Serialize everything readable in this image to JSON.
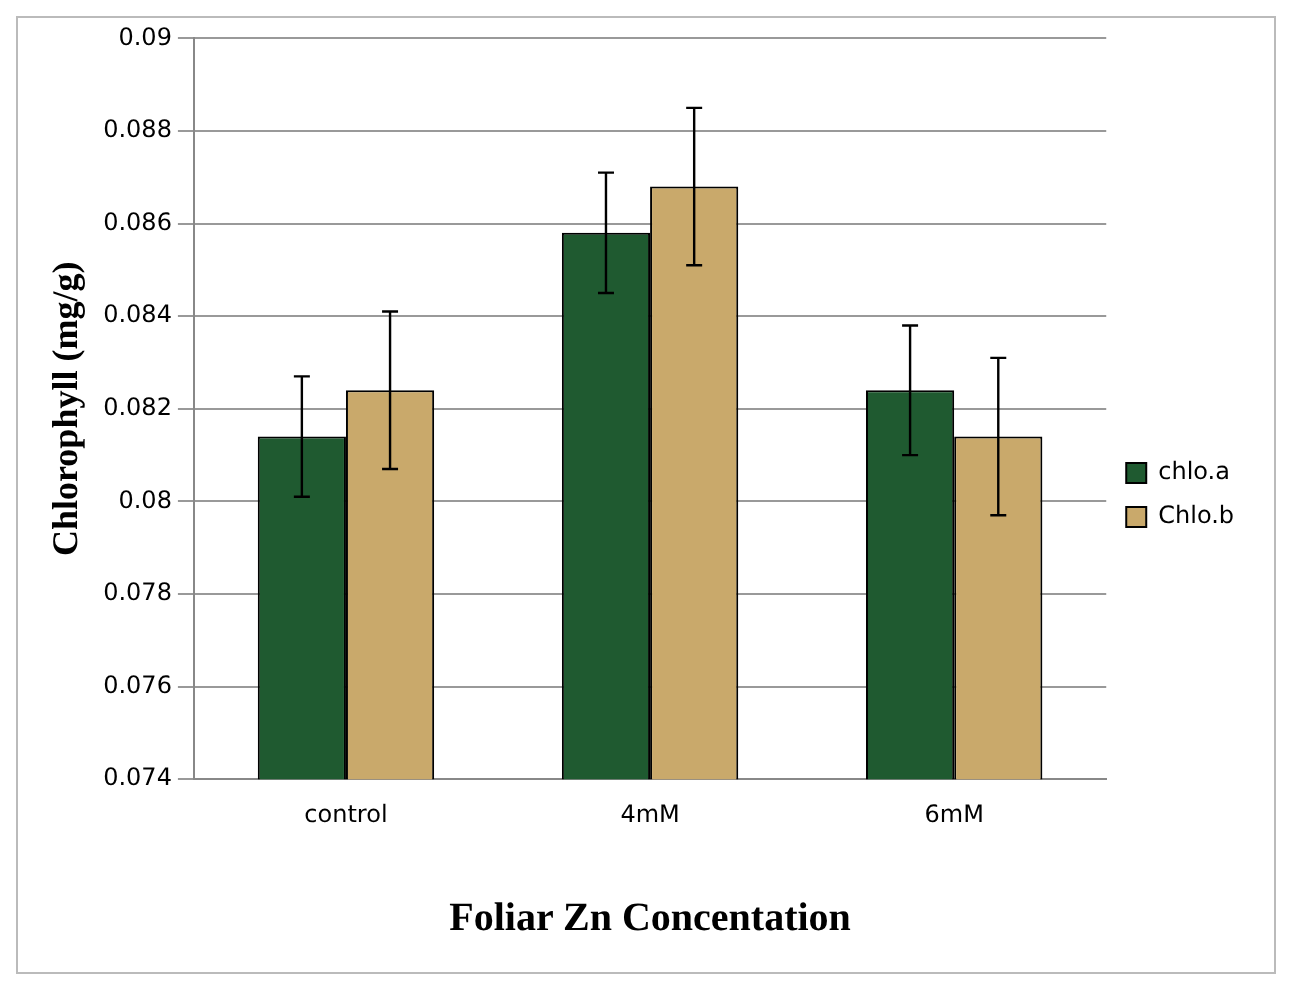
{
  "chart_data": {
    "type": "bar",
    "xlabel": "Foliar Zn Concentation",
    "ylabel": "Chlorophyll (mg/g)",
    "categories": [
      "control",
      "4mM",
      "6mM"
    ],
    "series": [
      {
        "name": "chlo.a",
        "color": "#1f5a30",
        "values": [
          0.0814,
          0.0858,
          0.0824
        ],
        "errors": [
          0.0013,
          0.0013,
          0.0014
        ]
      },
      {
        "name": "Chlo.b",
        "color": "#c9a96b",
        "values": [
          0.0824,
          0.0868,
          0.0814
        ],
        "errors": [
          0.0017,
          0.0017,
          0.0017
        ]
      }
    ],
    "ylim": [
      0.074,
      0.09
    ],
    "yticks": [
      0.074,
      0.076,
      0.078,
      0.08,
      0.082,
      0.084,
      0.086,
      0.088,
      0.09
    ],
    "grid": "y",
    "legend": "right"
  }
}
